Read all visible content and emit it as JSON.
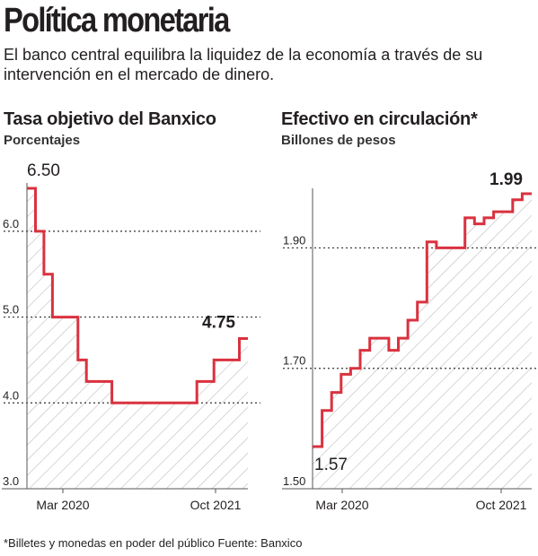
{
  "header": {
    "title": "Política monetaria",
    "subtitle": "El banco central equilibra la liquidez de la economía a través de su intervención en el mercado de dinero."
  },
  "colors": {
    "line": "#d9323f",
    "hatch": "#bdbdbd",
    "text": "#231f20",
    "grid": "#333333"
  },
  "chart_data": [
    {
      "type": "area",
      "title": "Tasa objetivo del Banxico",
      "subtitle": "Porcentajes",
      "ylim": [
        3.0,
        6.5
      ],
      "yticks": [
        "3.0",
        "4.0",
        "5.0",
        "6.0"
      ],
      "ytick_values": [
        3.0,
        4.0,
        5.0,
        6.0
      ],
      "gridlines": [
        4.0,
        5.0,
        6.0
      ],
      "xticks": [
        "Mar 2020",
        "Oct 2021"
      ],
      "step": true,
      "values": [
        6.5,
        6.0,
        5.5,
        5.0,
        5.0,
        5.0,
        4.5,
        4.25,
        4.25,
        4.25,
        4.0,
        4.0,
        4.0,
        4.0,
        4.0,
        4.0,
        4.0,
        4.0,
        4.0,
        4.0,
        4.25,
        4.25,
        4.5,
        4.5,
        4.5,
        4.75
      ],
      "start_label": "6.50",
      "end_label": "4.75"
    },
    {
      "type": "area",
      "title": "Efectivo en circulación*",
      "subtitle": "Billones de pesos",
      "ylim": [
        1.5,
        2.0
      ],
      "yticks": [
        "1.50",
        "1.70",
        "1.90"
      ],
      "ytick_values": [
        1.5,
        1.7,
        1.9
      ],
      "gridlines": [
        1.7,
        1.9
      ],
      "xticks": [
        "Mar 2020",
        "Oct 2021"
      ],
      "step": true,
      "values": [
        1.57,
        1.63,
        1.66,
        1.69,
        1.7,
        1.73,
        1.75,
        1.75,
        1.73,
        1.75,
        1.78,
        1.81,
        1.91,
        1.9,
        1.9,
        1.9,
        1.95,
        1.94,
        1.95,
        1.96,
        1.96,
        1.98,
        1.99
      ],
      "start_label": "1.57",
      "end_label": "1.99"
    }
  ],
  "footnote": "*Billetes y monedas en poder del público  Fuente: Banxico"
}
